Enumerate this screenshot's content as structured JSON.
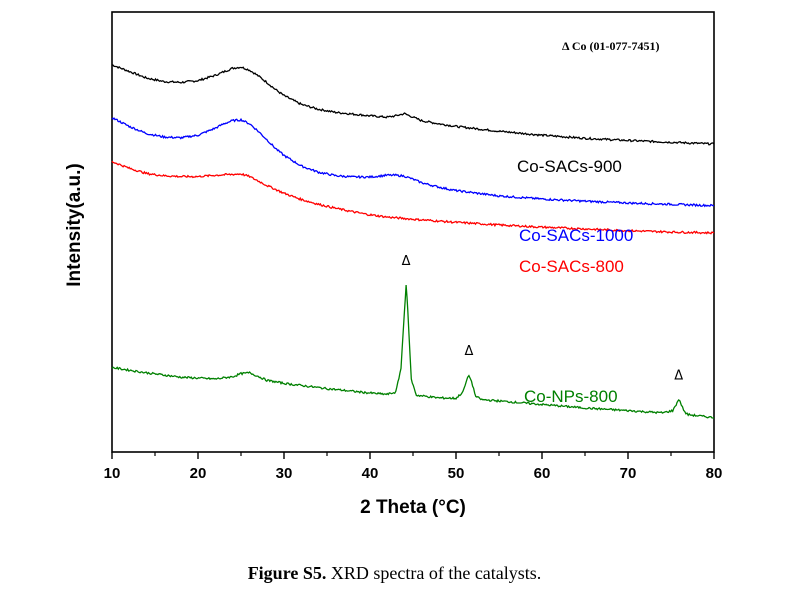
{
  "chart_data": {
    "type": "line",
    "xlabel": "2 Theta (°C)",
    "ylabel": "Intensity(a.u.)",
    "xlim": [
      10,
      80
    ],
    "ylim": [
      0,
      100
    ],
    "x_ticks": [
      "10",
      "20",
      "30",
      "40",
      "50",
      "60",
      "70",
      "80"
    ],
    "y_ticks_shown": false,
    "reference_legend": "Δ Co (01-077-7451)",
    "peak_marker_symbol": "Δ",
    "peak_markers": [
      {
        "x": 44.2,
        "y": 42.5
      },
      {
        "x": 51.5,
        "y": 22.0
      },
      {
        "x": 75.9,
        "y": 16.5
      }
    ],
    "series": [
      {
        "name": "Co-SACs-900",
        "color": "#000000",
        "points": [
          [
            10,
            88.0
          ],
          [
            12,
            86.5
          ],
          [
            14,
            85.0
          ],
          [
            16,
            84.2
          ],
          [
            18,
            84.0
          ],
          [
            20,
            84.4
          ],
          [
            22,
            85.6
          ],
          [
            23,
            86.4
          ],
          [
            24,
            87.2
          ],
          [
            25,
            87.5
          ],
          [
            26,
            86.8
          ],
          [
            27,
            85.5
          ],
          [
            28,
            84.0
          ],
          [
            29,
            82.4
          ],
          [
            30,
            81.0
          ],
          [
            32,
            79.0
          ],
          [
            34,
            77.9
          ],
          [
            36,
            77.2
          ],
          [
            38,
            76.8
          ],
          [
            40,
            76.4
          ],
          [
            42,
            76.1
          ],
          [
            43,
            76.4
          ],
          [
            44,
            76.9
          ],
          [
            45,
            76.1
          ],
          [
            46,
            75.3
          ],
          [
            48,
            74.6
          ],
          [
            50,
            74.0
          ],
          [
            55,
            72.9
          ],
          [
            60,
            72.0
          ],
          [
            65,
            71.3
          ],
          [
            70,
            70.8
          ],
          [
            75,
            70.4
          ],
          [
            80,
            70.0
          ]
        ]
      },
      {
        "name": "Co-SACs-1000",
        "color": "#0000ff",
        "points": [
          [
            10,
            76.0
          ],
          [
            12,
            74.0
          ],
          [
            14,
            72.4
          ],
          [
            16,
            71.6
          ],
          [
            18,
            71.4
          ],
          [
            20,
            72.0
          ],
          [
            22,
            73.6
          ],
          [
            23,
            74.6
          ],
          [
            24,
            75.3
          ],
          [
            25,
            75.5
          ],
          [
            26,
            74.6
          ],
          [
            27,
            72.9
          ],
          [
            28,
            71.0
          ],
          [
            29,
            69.0
          ],
          [
            30,
            67.4
          ],
          [
            32,
            65.0
          ],
          [
            34,
            63.6
          ],
          [
            36,
            62.8
          ],
          [
            38,
            62.5
          ],
          [
            40,
            62.5
          ],
          [
            42,
            62.9
          ],
          [
            43,
            62.9
          ],
          [
            44,
            62.7
          ],
          [
            45,
            62.0
          ],
          [
            46,
            61.2
          ],
          [
            48,
            60.2
          ],
          [
            50,
            59.4
          ],
          [
            55,
            58.2
          ],
          [
            60,
            57.5
          ],
          [
            65,
            57.0
          ],
          [
            70,
            56.6
          ],
          [
            75,
            56.3
          ],
          [
            80,
            56.0
          ]
        ]
      },
      {
        "name": "Co-SACs-800",
        "color": "#ff0000",
        "points": [
          [
            10,
            66.0
          ],
          [
            12,
            64.5
          ],
          [
            14,
            63.3
          ],
          [
            16,
            62.8
          ],
          [
            18,
            62.6
          ],
          [
            20,
            62.6
          ],
          [
            22,
            62.9
          ],
          [
            24,
            63.1
          ],
          [
            25,
            63.2
          ],
          [
            26,
            62.6
          ],
          [
            27,
            61.6
          ],
          [
            28,
            60.6
          ],
          [
            30,
            58.8
          ],
          [
            32,
            57.4
          ],
          [
            34,
            56.3
          ],
          [
            36,
            55.4
          ],
          [
            38,
            54.6
          ],
          [
            40,
            53.9
          ],
          [
            42,
            53.4
          ],
          [
            45,
            52.9
          ],
          [
            50,
            52.2
          ],
          [
            55,
            51.6
          ],
          [
            60,
            51.1
          ],
          [
            65,
            50.7
          ],
          [
            70,
            50.3
          ],
          [
            75,
            50.0
          ],
          [
            80,
            49.8
          ]
        ]
      },
      {
        "name": "Co-NPs-800",
        "color": "#008000",
        "points": [
          [
            10,
            19.2
          ],
          [
            14,
            18.0
          ],
          [
            18,
            17.0
          ],
          [
            22,
            16.6
          ],
          [
            24,
            17.1
          ],
          [
            25,
            17.8
          ],
          [
            26,
            18.0
          ],
          [
            27,
            17.2
          ],
          [
            28,
            16.3
          ],
          [
            30,
            15.6
          ],
          [
            35,
            14.4
          ],
          [
            40,
            13.4
          ],
          [
            42,
            13.1
          ],
          [
            43,
            13.6
          ],
          [
            43.6,
            19.0
          ],
          [
            44.0,
            32.0
          ],
          [
            44.2,
            38.0
          ],
          [
            44.4,
            32.0
          ],
          [
            44.8,
            16.5
          ],
          [
            45.4,
            12.9
          ],
          [
            48,
            12.3
          ],
          [
            50,
            12.2
          ],
          [
            50.8,
            13.6
          ],
          [
            51.2,
            16.0
          ],
          [
            51.5,
            17.5
          ],
          [
            51.8,
            16.0
          ],
          [
            52.3,
            12.6
          ],
          [
            53,
            11.9
          ],
          [
            55,
            11.6
          ],
          [
            60,
            10.8
          ],
          [
            65,
            10.0
          ],
          [
            70,
            9.4
          ],
          [
            74,
            8.9
          ],
          [
            75.2,
            9.4
          ],
          [
            75.6,
            10.8
          ],
          [
            75.9,
            12.0
          ],
          [
            76.2,
            10.8
          ],
          [
            76.6,
            9.0
          ],
          [
            77,
            8.5
          ],
          [
            80,
            7.8
          ]
        ]
      }
    ],
    "series_labels": [
      "Co-SACs-900",
      "Co-SACs-1000",
      "Co-SACs-800",
      "Co-NPs-800"
    ]
  },
  "caption": {
    "bold": "Figure S5.",
    "text": " XRD spectra of the catalysts."
  }
}
